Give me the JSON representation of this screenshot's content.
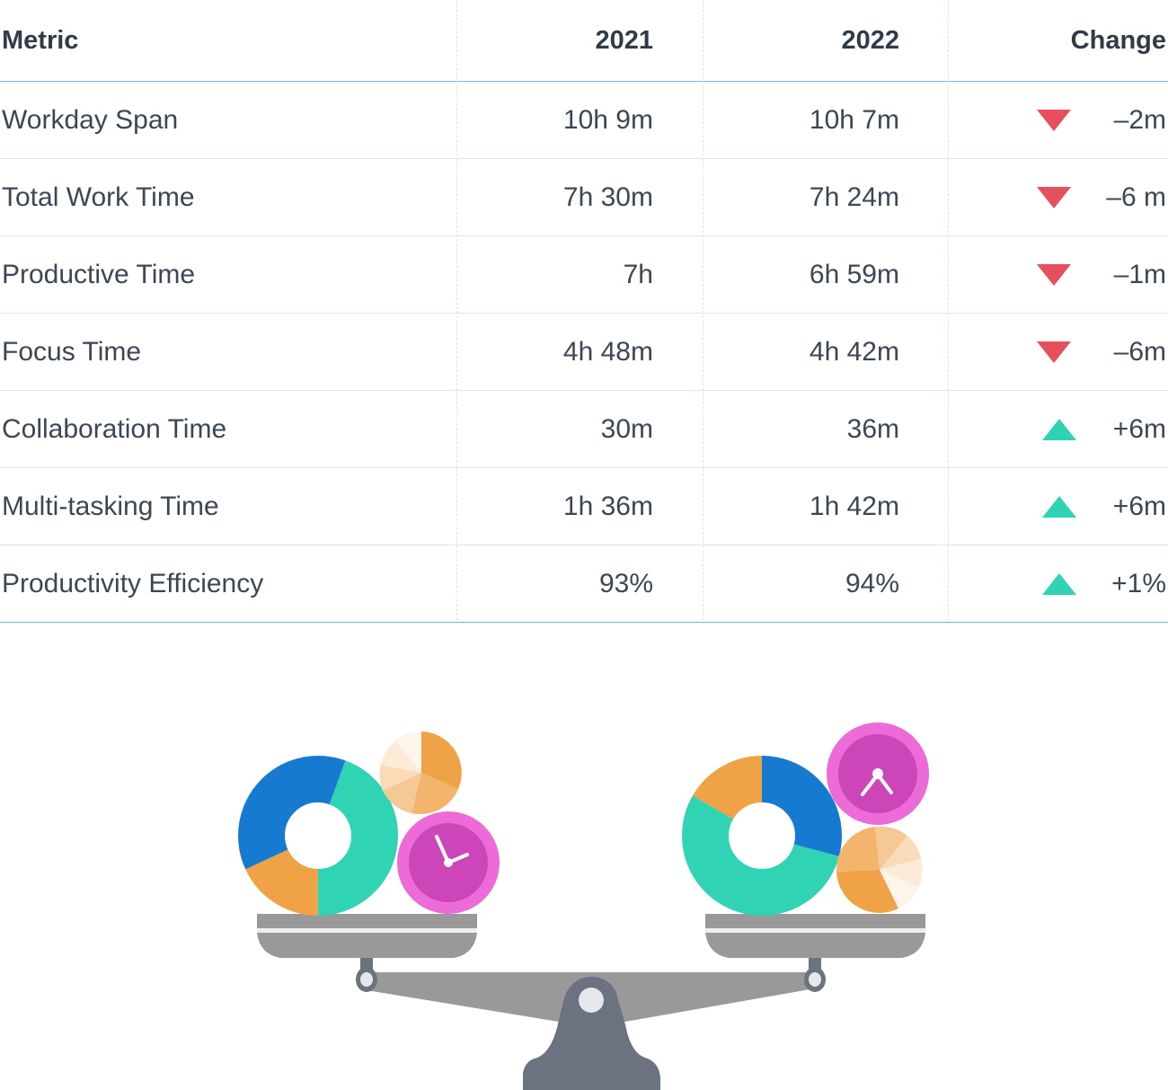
{
  "table": {
    "headers": {
      "metric": "Metric",
      "y2021": "2021",
      "y2022": "2022",
      "change": "Change"
    },
    "rows": [
      {
        "metric": "Workday Span",
        "y2021": "10h 9m",
        "y2022": "10h 7m",
        "change": "–2m",
        "direction": "down"
      },
      {
        "metric": "Total Work Time",
        "y2021": "7h 30m",
        "y2022": "7h 24m",
        "change": "–6 m",
        "direction": "down"
      },
      {
        "metric": "Productive Time",
        "y2021": "7h",
        "y2022": "6h 59m",
        "change": "–1m",
        "direction": "down"
      },
      {
        "metric": "Focus Time",
        "y2021": "4h 48m",
        "y2022": "4h 42m",
        "change": "–6m",
        "direction": "down"
      },
      {
        "metric": "Collaboration Time",
        "y2021": "30m",
        "y2022": "36m",
        "change": "+6m",
        "direction": "up"
      },
      {
        "metric": "Multi-tasking Time",
        "y2021": "1h 36m",
        "y2022": "1h 42m",
        "change": "+6m",
        "direction": "up"
      },
      {
        "metric": "Productivity Efficiency",
        "y2021": "93%",
        "y2022": "94%",
        "change": "+1%",
        "direction": "up"
      }
    ]
  },
  "colors": {
    "down": "#e5505c",
    "up": "#2fd3b4",
    "blue": "#177ad1",
    "teal": "#31d3b5",
    "orange": "#efa346",
    "pink": "#ec6bd8",
    "magenta": "#cc45b9",
    "gray": "#999999",
    "slate": "#6b7280"
  }
}
